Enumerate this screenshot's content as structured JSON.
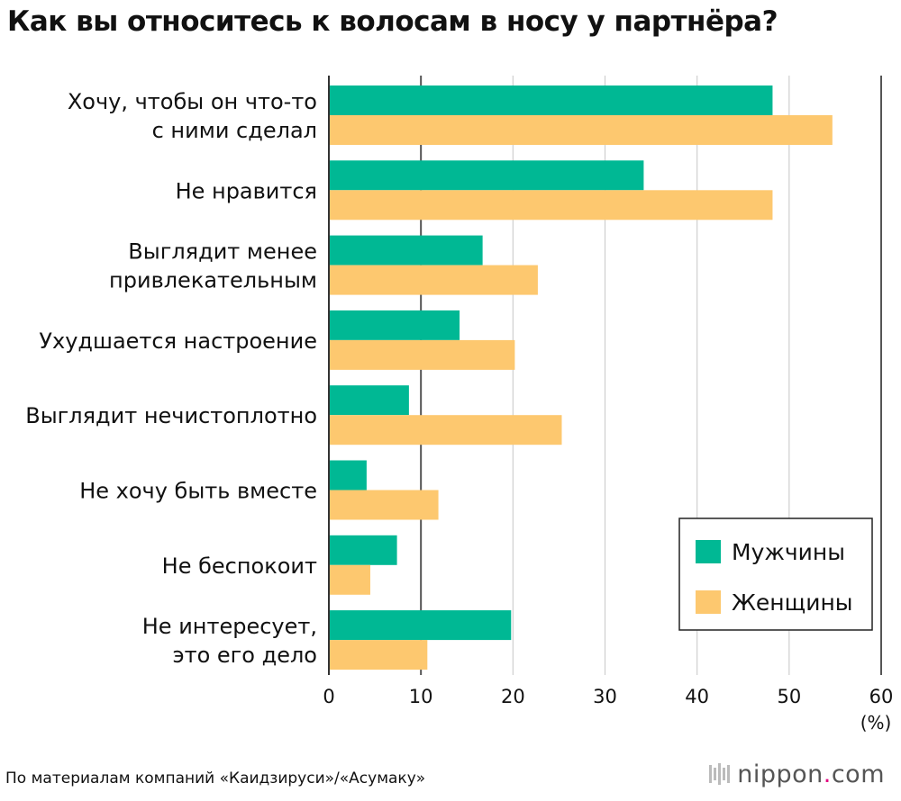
{
  "title": "Как вы относитесь к волосам в носу у партнёра?",
  "source": "По материалам компаний «Каидзируси»/«Асумаку»",
  "logo": {
    "name": "nippon",
    "dot": ".",
    "suffix": "com"
  },
  "colors": {
    "men": "#00b894",
    "women": "#fdc86f",
    "grid": "#cfcfcf",
    "axis": "#333333"
  },
  "chart_data": {
    "type": "bar",
    "orientation": "horizontal",
    "title": "Как вы относитесь к волосам в носу у партнёра?",
    "unit": "(%)",
    "xlim": [
      0,
      60
    ],
    "xticks": [
      0,
      10,
      20,
      30,
      40,
      50,
      60
    ],
    "grid": true,
    "legend_position": "bottom-right",
    "categories": [
      [
        "Хочу, чтобы он что-то",
        "с ними сделал"
      ],
      [
        "Не нравится"
      ],
      [
        "Выглядит менее",
        "привлекательным"
      ],
      [
        "Ухудшается настроение"
      ],
      [
        "Выглядит нечистоплотно"
      ],
      [
        "Не хочу быть вместе"
      ],
      [
        "Не беспокоит"
      ],
      [
        "Не интересует,",
        "это его дело"
      ]
    ],
    "series": [
      {
        "name": "Мужчины",
        "color": "#00b894",
        "values": [
          48.2,
          34.2,
          16.7,
          14.2,
          8.7,
          4.1,
          7.4,
          19.8
        ]
      },
      {
        "name": "Женщины",
        "color": "#fdc86f",
        "values": [
          54.7,
          48.2,
          22.7,
          20.2,
          25.3,
          11.9,
          4.5,
          10.7
        ]
      }
    ]
  }
}
